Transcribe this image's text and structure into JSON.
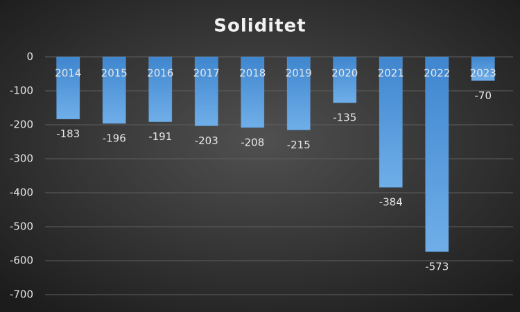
{
  "chart_data": {
    "type": "bar",
    "title": "Soliditet",
    "categories": [
      "2014",
      "2015",
      "2016",
      "2017",
      "2018",
      "2019",
      "2020",
      "2021",
      "2022",
      "2023"
    ],
    "values": [
      -183,
      -196,
      -191,
      -203,
      -208,
      -215,
      -135,
      -384,
      -573,
      -70
    ],
    "color": "#5b9bd5",
    "ylim": [
      -700,
      0
    ],
    "yticks": [
      0,
      -100,
      -200,
      -300,
      -400,
      -500,
      -600,
      -700
    ],
    "grid": true
  }
}
